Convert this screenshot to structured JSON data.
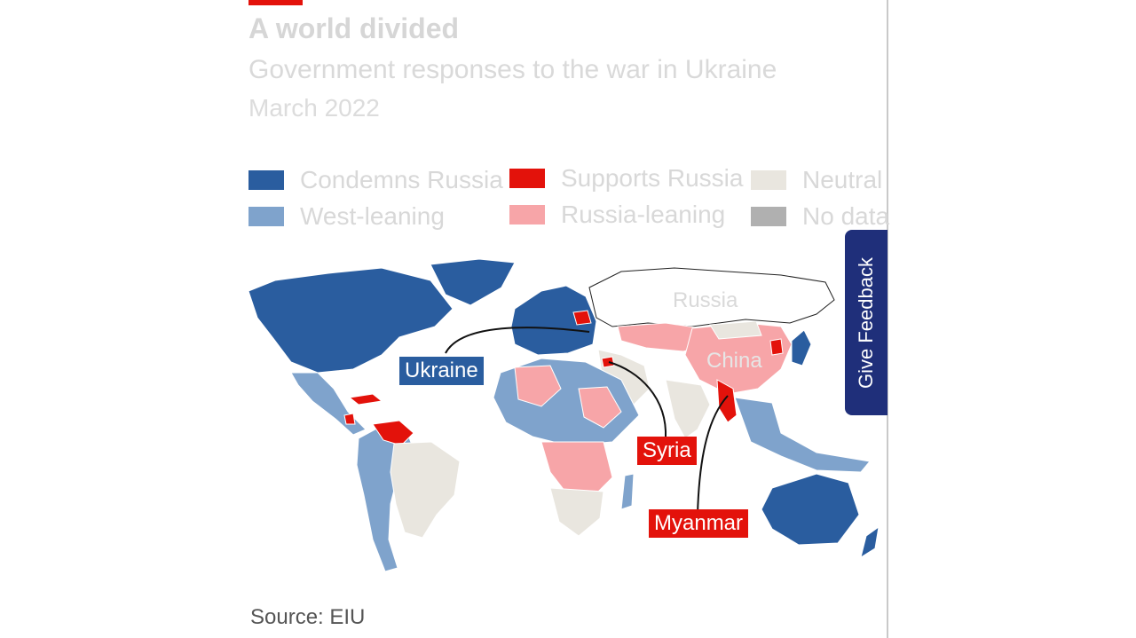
{
  "header": {
    "title": "A world divided",
    "subtitle": "Government responses to the war in Ukraine",
    "date": "March 2022"
  },
  "legend": [
    {
      "label": "Condemns Russia",
      "color": "#2a5d9f"
    },
    {
      "label": "Supports Russia",
      "color": "#e3120b"
    },
    {
      "label": "Neutral",
      "color": "#e9e6df"
    },
    {
      "label": "West-leaning",
      "color": "#7fa3cc"
    },
    {
      "label": "Russia-leaning",
      "color": "#f7a5a8"
    },
    {
      "label": "No data",
      "color": "#b0b0b0"
    }
  ],
  "map_labels": {
    "russia": "Russia",
    "china": "China"
  },
  "callouts": {
    "ukraine": "Ukraine",
    "syria": "Syria",
    "myanmar": "Myanmar"
  },
  "source": "Source: EIU",
  "feedback_button": "Give Feedback"
}
